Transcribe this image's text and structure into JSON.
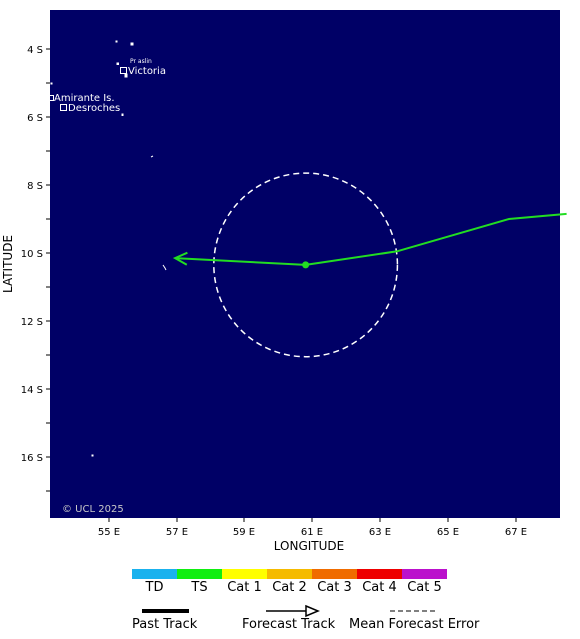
{
  "map": {
    "xlabel": "LONGITUDE",
    "ylabel": "LATITUDE",
    "x_ticks": [
      "55 E",
      "57 E",
      "59 E",
      "61 E",
      "63 E",
      "65 E",
      "67 E"
    ],
    "y_ticks": [
      "4 S",
      "6 S",
      "8 S",
      "10 S",
      "12 S",
      "14 S",
      "16 S"
    ],
    "copyright": "© UCL 2025",
    "ocean_color": "#000066",
    "places": [
      {
        "name": "Victoria",
        "label": "Victoria"
      },
      {
        "name": "amirante",
        "label": "Amirante Is."
      },
      {
        "name": "desroches",
        "label": "Desroches"
      },
      {
        "name": "praslin",
        "label": "Pr aslin"
      }
    ],
    "track": {
      "color": "#22dd22",
      "current_position": {
        "lon": 60.8,
        "lat": -10.35
      },
      "forecast_error_radius_deg": 2.7,
      "past_track": [
        {
          "lon": 68.5,
          "lat": -8.85
        },
        {
          "lon": 66.8,
          "lat": -9.0
        },
        {
          "lon": 63.5,
          "lat": -9.95
        },
        {
          "lon": 60.8,
          "lat": -10.35
        }
      ],
      "forecast_track": [
        {
          "lon": 60.8,
          "lat": -10.35
        },
        {
          "lon": 56.95,
          "lat": -10.15
        }
      ]
    }
  },
  "legend": {
    "categories": [
      {
        "label": "TD",
        "color": "#1ab2ee"
      },
      {
        "label": "TS",
        "color": "#11ee11"
      },
      {
        "label": "Cat 1",
        "color": "#ffff00"
      },
      {
        "label": "Cat 2",
        "color": "#f5bb00"
      },
      {
        "label": "Cat 3",
        "color": "#f06c00"
      },
      {
        "label": "Cat 4",
        "color": "#ee0000"
      },
      {
        "label": "Cat 5",
        "color": "#bb11cc"
      }
    ],
    "past_track_label": "Past Track",
    "forecast_track_label": "Forecast Track",
    "mean_error_label": "Mean Forecast Error"
  }
}
